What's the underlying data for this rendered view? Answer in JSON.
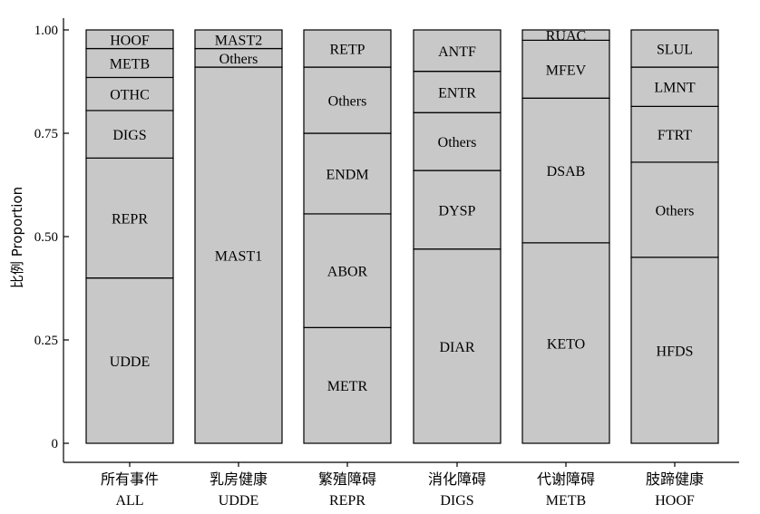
{
  "chart_data": {
    "type": "bar",
    "stacked": true,
    "normalized": true,
    "ylabel": "比例 Proportion",
    "ylim": [
      0,
      1
    ],
    "yticks": [
      0,
      0.25,
      0.5,
      0.75,
      1.0
    ],
    "ytick_labels": [
      "0",
      "0.25",
      "0.50",
      "0.75",
      "1.00"
    ],
    "grid": false,
    "bar_color": "#c8c8c8",
    "categories": [
      {
        "label": "所有事件",
        "sublabel": "ALL",
        "segments": [
          {
            "label": "UDDE",
            "value": 0.4
          },
          {
            "label": "REPR",
            "value": 0.29
          },
          {
            "label": "DIGS",
            "value": 0.115
          },
          {
            "label": "OTHC",
            "value": 0.08
          },
          {
            "label": "METB",
            "value": 0.07
          },
          {
            "label": "HOOF",
            "value": 0.045
          }
        ]
      },
      {
        "label": "乳房健康",
        "sublabel": "UDDE",
        "segments": [
          {
            "label": "MAST1",
            "value": 0.91
          },
          {
            "label": "Others",
            "value": 0.045
          },
          {
            "label": "MAST2",
            "value": 0.045
          }
        ]
      },
      {
        "label": "繁殖障碍",
        "sublabel": "REPR",
        "segments": [
          {
            "label": "METR",
            "value": 0.28
          },
          {
            "label": "ABOR",
            "value": 0.275
          },
          {
            "label": "ENDM",
            "value": 0.195
          },
          {
            "label": "Others",
            "value": 0.16
          },
          {
            "label": "RETP",
            "value": 0.09
          }
        ]
      },
      {
        "label": "消化障碍",
        "sublabel": "DIGS",
        "segments": [
          {
            "label": "DIAR",
            "value": 0.47
          },
          {
            "label": "DYSP",
            "value": 0.19
          },
          {
            "label": "Others",
            "value": 0.14
          },
          {
            "label": "ENTR",
            "value": 0.1
          },
          {
            "label": "ANTF",
            "value": 0.1
          }
        ]
      },
      {
        "label": "代谢障碍",
        "sublabel": "METB",
        "segments": [
          {
            "label": "KETO",
            "value": 0.485
          },
          {
            "label": "DSAB",
            "value": 0.35
          },
          {
            "label": "MFEV",
            "value": 0.14
          },
          {
            "label": "RUAC",
            "value": 0.025
          }
        ]
      },
      {
        "label": "肢蹄健康",
        "sublabel": "HOOF",
        "segments": [
          {
            "label": "HFDS",
            "value": 0.45
          },
          {
            "label": "Others",
            "value": 0.23
          },
          {
            "label": "FTRT",
            "value": 0.135
          },
          {
            "label": "LMNT",
            "value": 0.095
          },
          {
            "label": "SLUL",
            "value": 0.09
          }
        ]
      }
    ]
  }
}
